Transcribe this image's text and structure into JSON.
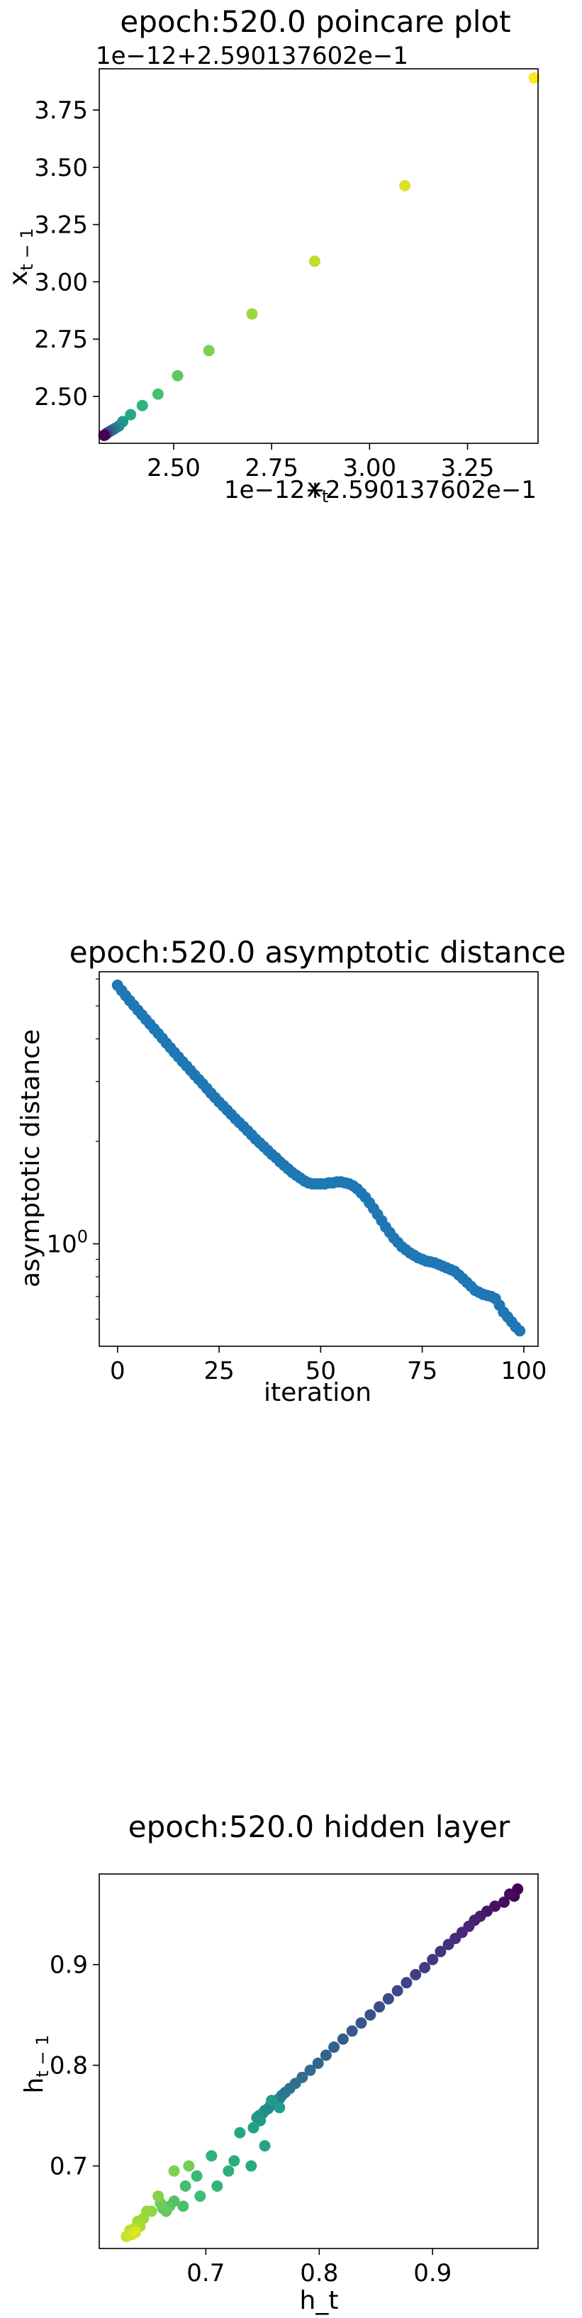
{
  "chart_data": [
    {
      "id": "poincare",
      "type": "scatter",
      "title": "epoch:520.0 poincare plot",
      "xlabel": "x_t",
      "ylabel": "x_t-1",
      "x_offset_text": "1e−12+2.590137602e−1",
      "y_offset_text": "1e−12+2.590137602e−1",
      "xlim": [
        2.31,
        3.43
      ],
      "ylim": [
        2.295,
        3.93
      ],
      "xticks": [
        {
          "v": 2.5,
          "label": "2.50"
        },
        {
          "v": 2.75,
          "label": "2.75"
        },
        {
          "v": 3.0,
          "label": "3.00"
        },
        {
          "v": 3.25,
          "label": "3.25"
        }
      ],
      "yticks": [
        {
          "v": 2.5,
          "label": "2.50"
        },
        {
          "v": 2.75,
          "label": "2.75"
        },
        {
          "v": 3.0,
          "label": "3.00"
        },
        {
          "v": 3.25,
          "label": "3.25"
        },
        {
          "v": 3.5,
          "label": "3.50"
        },
        {
          "v": 3.75,
          "label": "3.75"
        }
      ],
      "points": [
        [
          3.42,
          3.89
        ],
        [
          3.09,
          3.42
        ],
        [
          2.86,
          3.09
        ],
        [
          2.7,
          2.86
        ],
        [
          2.59,
          2.7
        ],
        [
          2.51,
          2.59
        ],
        [
          2.46,
          2.51
        ],
        [
          2.42,
          2.46
        ],
        [
          2.39,
          2.42
        ],
        [
          2.37,
          2.39
        ],
        [
          2.36,
          2.37
        ],
        [
          2.35,
          2.36
        ],
        [
          2.345,
          2.355
        ],
        [
          2.34,
          2.35
        ],
        [
          2.335,
          2.345
        ],
        [
          2.33,
          2.34
        ],
        [
          2.328,
          2.336
        ],
        [
          2.326,
          2.333
        ],
        [
          2.324,
          2.331
        ],
        [
          2.323,
          2.33
        ],
        [
          2.322,
          2.33
        ]
      ],
      "colors": "viridis reversed by point order (first dark purple, last yellow)"
    },
    {
      "id": "asymptotic",
      "type": "scatter",
      "title": "epoch:520.0 asymptotic distance",
      "xlabel": "iteration",
      "ylabel": "asymptotic distance",
      "yscale": "log",
      "xlim": [
        -4.5,
        103.5
      ],
      "ylim": [
        0.5,
        6.3
      ],
      "xticks": [
        {
          "v": 0,
          "label": "0"
        },
        {
          "v": 25,
          "label": "25"
        },
        {
          "v": 50,
          "label": "50"
        },
        {
          "v": 75,
          "label": "75"
        },
        {
          "v": 100,
          "label": "100"
        }
      ],
      "yticks_major": [
        {
          "v": 1,
          "label": "10",
          "sup": "0"
        }
      ],
      "yticks_minor": [
        0.6,
        0.7,
        0.8,
        0.9,
        2,
        3,
        4,
        5,
        6
      ],
      "color": "#1f77b4",
      "x": [
        0,
        1,
        2,
        3,
        4,
        5,
        6,
        7,
        8,
        9,
        10,
        11,
        12,
        13,
        14,
        15,
        16,
        17,
        18,
        19,
        20,
        21,
        22,
        23,
        24,
        25,
        26,
        27,
        28,
        29,
        30,
        31,
        32,
        33,
        34,
        35,
        36,
        37,
        38,
        39,
        40,
        41,
        42,
        43,
        44,
        45,
        46,
        47,
        48,
        49,
        50,
        51,
        52,
        53,
        54,
        55,
        56,
        57,
        58,
        59,
        60,
        61,
        62,
        63,
        64,
        65,
        66,
        67,
        68,
        69,
        70,
        71,
        72,
        73,
        74,
        75,
        76,
        77,
        78,
        79,
        80,
        81,
        82,
        83,
        84,
        85,
        86,
        87,
        88,
        89,
        90,
        91,
        92,
        93,
        94,
        95,
        96,
        97,
        98,
        99
      ],
      "y": [
        5.75,
        5.55,
        5.36,
        5.18,
        5.02,
        4.86,
        4.71,
        4.56,
        4.42,
        4.28,
        4.15,
        4.02,
        3.89,
        3.77,
        3.65,
        3.54,
        3.43,
        3.33,
        3.23,
        3.13,
        3.04,
        2.95,
        2.86,
        2.77,
        2.69,
        2.61,
        2.54,
        2.47,
        2.4,
        2.33,
        2.27,
        2.21,
        2.15,
        2.09,
        2.03,
        1.98,
        1.93,
        1.88,
        1.83,
        1.79,
        1.74,
        1.7,
        1.66,
        1.62,
        1.59,
        1.56,
        1.53,
        1.51,
        1.5,
        1.5,
        1.5,
        1.5,
        1.51,
        1.51,
        1.52,
        1.52,
        1.51,
        1.5,
        1.48,
        1.45,
        1.41,
        1.37,
        1.32,
        1.27,
        1.22,
        1.17,
        1.12,
        1.08,
        1.04,
        1.01,
        0.98,
        0.96,
        0.94,
        0.925,
        0.91,
        0.9,
        0.89,
        0.885,
        0.88,
        0.87,
        0.86,
        0.85,
        0.84,
        0.83,
        0.81,
        0.79,
        0.77,
        0.75,
        0.73,
        0.72,
        0.71,
        0.705,
        0.7,
        0.69,
        0.66,
        0.63,
        0.61,
        0.59,
        0.57,
        0.555
      ]
    },
    {
      "id": "hidden",
      "type": "scatter",
      "title": "epoch:520.0 hidden layer",
      "xlabel": "h_t",
      "ylabel": "h_t-1",
      "xlim": [
        0.606,
        0.993
      ],
      "ylim": [
        0.618,
        0.99
      ],
      "xticks": [
        {
          "v": 0.7,
          "label": "0.7"
        },
        {
          "v": 0.8,
          "label": "0.8"
        },
        {
          "v": 0.9,
          "label": "0.9"
        }
      ],
      "yticks": [
        {
          "v": 0.7,
          "label": "0.7"
        },
        {
          "v": 0.8,
          "label": "0.8"
        },
        {
          "v": 0.9,
          "label": "0.9"
        }
      ],
      "points": [
        [
          0.975,
          0.975
        ],
        [
          0.972,
          0.968
        ],
        [
          0.968,
          0.97
        ],
        [
          0.963,
          0.962
        ],
        [
          0.955,
          0.958
        ],
        [
          0.948,
          0.953
        ],
        [
          0.942,
          0.948
        ],
        [
          0.937,
          0.944
        ],
        [
          0.932,
          0.938
        ],
        [
          0.926,
          0.932
        ],
        [
          0.92,
          0.926
        ],
        [
          0.914,
          0.92
        ],
        [
          0.907,
          0.913
        ],
        [
          0.9,
          0.905
        ],
        [
          0.893,
          0.897
        ],
        [
          0.885,
          0.89
        ],
        [
          0.877,
          0.882
        ],
        [
          0.869,
          0.874
        ],
        [
          0.861,
          0.866
        ],
        [
          0.853,
          0.858
        ],
        [
          0.845,
          0.85
        ],
        [
          0.837,
          0.842
        ],
        [
          0.829,
          0.834
        ],
        [
          0.821,
          0.826
        ],
        [
          0.813,
          0.818
        ],
        [
          0.806,
          0.81
        ],
        [
          0.799,
          0.802
        ],
        [
          0.792,
          0.795
        ],
        [
          0.785,
          0.788
        ],
        [
          0.779,
          0.782
        ],
        [
          0.774,
          0.777
        ],
        [
          0.77,
          0.773
        ],
        [
          0.767,
          0.77
        ],
        [
          0.765,
          0.767
        ],
        [
          0.762,
          0.765
        ],
        [
          0.76,
          0.763
        ],
        [
          0.757,
          0.76
        ],
        [
          0.755,
          0.757
        ],
        [
          0.752,
          0.755
        ],
        [
          0.75,
          0.752
        ],
        [
          0.747,
          0.75
        ],
        [
          0.745,
          0.748
        ],
        [
          0.748,
          0.745
        ],
        [
          0.758,
          0.765
        ],
        [
          0.765,
          0.758
        ],
        [
          0.742,
          0.738
        ],
        [
          0.752,
          0.72
        ],
        [
          0.73,
          0.733
        ],
        [
          0.74,
          0.7
        ],
        [
          0.725,
          0.705
        ],
        [
          0.72,
          0.695
        ],
        [
          0.705,
          0.71
        ],
        [
          0.71,
          0.68
        ],
        [
          0.692,
          0.69
        ],
        [
          0.695,
          0.67
        ],
        [
          0.682,
          0.68
        ],
        [
          0.68,
          0.66
        ],
        [
          0.672,
          0.665
        ],
        [
          0.668,
          0.66
        ],
        [
          0.662,
          0.658
        ],
        [
          0.665,
          0.655
        ],
        [
          0.66,
          0.663
        ],
        [
          0.685,
          0.7
        ],
        [
          0.672,
          0.695
        ],
        [
          0.658,
          0.67
        ],
        [
          0.652,
          0.655
        ],
        [
          0.648,
          0.655
        ],
        [
          0.645,
          0.648
        ],
        [
          0.64,
          0.645
        ],
        [
          0.642,
          0.64
        ],
        [
          0.637,
          0.638
        ],
        [
          0.633,
          0.636
        ],
        [
          0.632,
          0.632
        ],
        [
          0.63,
          0.63
        ],
        [
          0.635,
          0.632
        ],
        [
          0.638,
          0.634
        ]
      ],
      "colors": "viridis reversed by point order (first dark purple, last yellow)"
    }
  ]
}
